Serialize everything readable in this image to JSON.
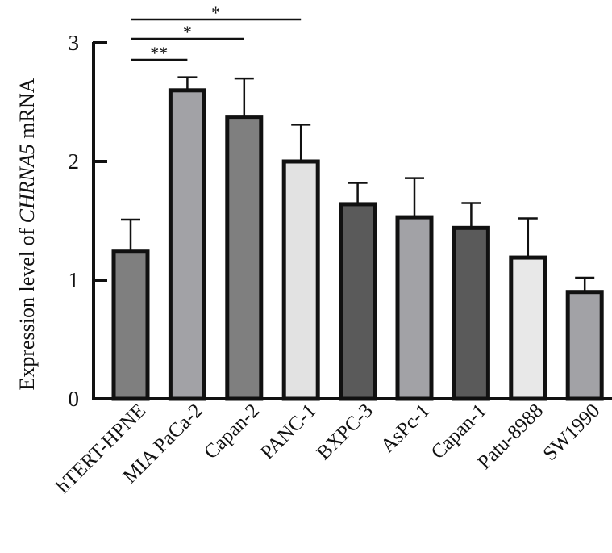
{
  "chart_data": {
    "type": "bar",
    "ylabel_prefix": "Expression level of ",
    "ylabel_gene": "CHRNA5",
    "ylabel_suffix": " mRNA",
    "xlabel": "",
    "ylim": [
      0,
      3
    ],
    "yticks": [
      0,
      1,
      2,
      3
    ],
    "grid": false,
    "legend": "none",
    "categories": [
      "hTERT-HPNE",
      "MIA PaCa-2",
      "Capan-2",
      "PANC-1",
      "BXPC-3",
      "AsPc-1",
      "Capan-1",
      "Patu-8988",
      "SW1990"
    ],
    "values": [
      1.24,
      2.6,
      2.37,
      2.0,
      1.64,
      1.53,
      1.44,
      1.19,
      0.9
    ],
    "errors": [
      0.27,
      0.11,
      0.33,
      0.31,
      0.18,
      0.33,
      0.21,
      0.33,
      0.12
    ],
    "colors": [
      "#7f7f7f",
      "#a2a2a6",
      "#7f7f7f",
      "#e2e2e2",
      "#5a5a5a",
      "#a2a2a6",
      "#5a5a5a",
      "#e8e8e8",
      "#a2a2a6"
    ],
    "significance": [
      {
        "from": "hTERT-HPNE",
        "to": "MIA PaCa-2",
        "label": "**"
      },
      {
        "from": "hTERT-HPNE",
        "to": "Capan-2",
        "label": "*"
      },
      {
        "from": "hTERT-HPNE",
        "to": "PANC-1",
        "label": "*"
      }
    ]
  }
}
